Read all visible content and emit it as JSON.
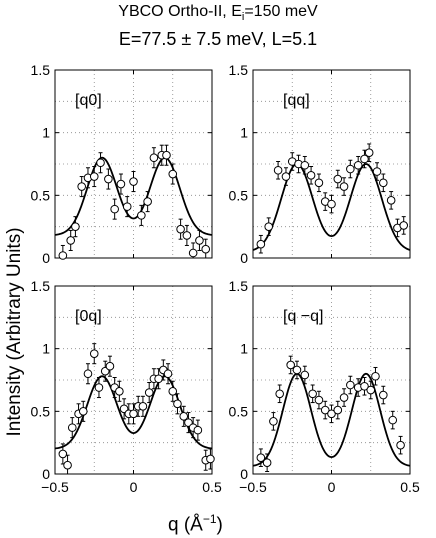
{
  "figure": {
    "title_line1_prefix": "YBCO Ortho-II, E",
    "title_line1_sub": "i",
    "title_line1_suffix": "=150 meV",
    "title_line2": "E=77.5 ± 7.5 meV, L=5.1",
    "ylabel": "Intensity (Arbitrary Units)",
    "xlabel_prefix": "q (Å",
    "xlabel_sup": "−1",
    "xlabel_suffix": ")"
  },
  "chart_data": [
    {
      "type": "scatter",
      "panel": "top-left",
      "annotation": "[q0]",
      "xlim": [
        -0.5,
        0.5
      ],
      "ylim": [
        0,
        1.5
      ],
      "xticks": [
        "−0.5",
        "0",
        "0.5"
      ],
      "yticks": [
        "0",
        "0.5",
        "1",
        "1.5"
      ],
      "grid": true,
      "series": [
        {
          "points": [
            [
              -0.45,
              0.02
            ],
            [
              -0.4,
              0.14
            ],
            [
              -0.37,
              0.25
            ],
            [
              -0.33,
              0.57
            ],
            [
              -0.29,
              0.64
            ],
            [
              -0.25,
              0.65
            ],
            [
              -0.21,
              0.76
            ],
            [
              -0.16,
              0.63
            ],
            [
              -0.12,
              0.39
            ],
            [
              -0.08,
              0.59
            ],
            [
              -0.04,
              0.41
            ],
            [
              0.0,
              0.61
            ],
            [
              0.05,
              0.34
            ],
            [
              0.09,
              0.45
            ],
            [
              0.13,
              0.8
            ],
            [
              0.18,
              0.82
            ],
            [
              0.21,
              0.82
            ],
            [
              0.25,
              0.67
            ],
            [
              0.3,
              0.23
            ],
            [
              0.34,
              0.18
            ],
            [
              0.38,
              0.04
            ],
            [
              0.42,
              0.14
            ],
            [
              0.46,
              0.07
            ]
          ],
          "errors": [
            0.08,
            0.08,
            0.08,
            0.08,
            0.08,
            0.08,
            0.08,
            0.08,
            0.08,
            0.08,
            0.08,
            0.08,
            0.08,
            0.08,
            0.08,
            0.08,
            0.08,
            0.08,
            0.08,
            0.08,
            0.08,
            0.08,
            0.08
          ]
        }
      ],
      "fit": {
        "center": 0.2,
        "sigma": 0.095,
        "amplitude": 0.62,
        "background": 0.18
      }
    },
    {
      "type": "scatter",
      "panel": "top-right",
      "annotation": "[qq]",
      "xlim": [
        -0.5,
        0.5
      ],
      "ylim": [
        0,
        1.5
      ],
      "xticks": [
        "−0.5",
        "0",
        "0.5"
      ],
      "yticks": [
        "0",
        "0.5",
        "1",
        "1.5"
      ],
      "grid": true,
      "series": [
        {
          "points": [
            [
              -0.45,
              0.11
            ],
            [
              -0.4,
              0.25
            ],
            [
              -0.34,
              0.7
            ],
            [
              -0.29,
              0.65
            ],
            [
              -0.25,
              0.77
            ],
            [
              -0.21,
              0.75
            ],
            [
              -0.17,
              0.74
            ],
            [
              -0.13,
              0.66
            ],
            [
              -0.08,
              0.6
            ],
            [
              -0.04,
              0.45
            ],
            [
              0.0,
              0.43
            ],
            [
              0.04,
              0.63
            ],
            [
              0.08,
              0.57
            ],
            [
              0.12,
              0.71
            ],
            [
              0.17,
              0.74
            ],
            [
              0.21,
              0.79
            ],
            [
              0.24,
              0.84
            ],
            [
              0.29,
              0.69
            ],
            [
              0.33,
              0.6
            ],
            [
              0.38,
              0.46
            ],
            [
              0.42,
              0.24
            ],
            [
              0.46,
              0.26
            ]
          ],
          "errors": [
            0.07,
            0.07,
            0.07,
            0.07,
            0.07,
            0.07,
            0.07,
            0.07,
            0.07,
            0.07,
            0.07,
            0.07,
            0.07,
            0.07,
            0.07,
            0.07,
            0.07,
            0.07,
            0.07,
            0.07,
            0.07,
            0.07
          ]
        }
      ],
      "fit": {
        "center": 0.22,
        "sigma": 0.1,
        "amplitude": 0.7,
        "background": 0.05
      }
    },
    {
      "type": "scatter",
      "panel": "bottom-left",
      "annotation": "[0q]",
      "xlim": [
        -0.5,
        0.5
      ],
      "ylim": [
        0,
        1.5
      ],
      "xticks": [
        "−0.5",
        "0",
        "0.5"
      ],
      "yticks": [
        "0",
        "0.5",
        "1",
        "1.5"
      ],
      "grid": true,
      "series": [
        {
          "points": [
            [
              -0.45,
              0.16
            ],
            [
              -0.42,
              0.07
            ],
            [
              -0.39,
              0.37
            ],
            [
              -0.35,
              0.48
            ],
            [
              -0.32,
              0.5
            ],
            [
              -0.29,
              0.8
            ],
            [
              -0.25,
              0.96
            ],
            [
              -0.22,
              0.69
            ],
            [
              -0.18,
              0.82
            ],
            [
              -0.15,
              0.86
            ],
            [
              -0.12,
              0.69
            ],
            [
              -0.09,
              0.66
            ],
            [
              -0.06,
              0.52
            ],
            [
              -0.03,
              0.48
            ],
            [
              0.0,
              0.48
            ],
            [
              0.03,
              0.54
            ],
            [
              0.06,
              0.54
            ],
            [
              0.1,
              0.65
            ],
            [
              0.13,
              0.76
            ],
            [
              0.16,
              0.76
            ],
            [
              0.19,
              0.83
            ],
            [
              0.22,
              0.8
            ],
            [
              0.25,
              0.66
            ],
            [
              0.28,
              0.56
            ],
            [
              0.32,
              0.46
            ],
            [
              0.35,
              0.41
            ],
            [
              0.38,
              0.37
            ],
            [
              0.41,
              0.35
            ],
            [
              0.46,
              0.11
            ],
            [
              0.49,
              0.12
            ]
          ],
          "errors": [
            0.08,
            0.08,
            0.08,
            0.08,
            0.08,
            0.08,
            0.08,
            0.08,
            0.08,
            0.08,
            0.08,
            0.08,
            0.08,
            0.08,
            0.08,
            0.08,
            0.08,
            0.08,
            0.08,
            0.08,
            0.08,
            0.08,
            0.08,
            0.08,
            0.08,
            0.08,
            0.08,
            0.08,
            0.08,
            0.08
          ]
        }
      ],
      "fit": {
        "center": 0.2,
        "sigma": 0.095,
        "amplitude": 0.58,
        "background": 0.2
      }
    },
    {
      "type": "scatter",
      "panel": "bottom-right",
      "annotation": "[q −q]",
      "xlim": [
        -0.5,
        0.5
      ],
      "ylim": [
        0,
        1.5
      ],
      "xticks": [
        "−0.5",
        "0",
        "0.5"
      ],
      "yticks": [
        "0",
        "0.5",
        "1",
        "1.5"
      ],
      "grid": true,
      "series": [
        {
          "points": [
            [
              -0.45,
              0.13
            ],
            [
              -0.41,
              0.09
            ],
            [
              -0.37,
              0.42
            ],
            [
              -0.33,
              0.64
            ],
            [
              -0.26,
              0.87
            ],
            [
              -0.22,
              0.83
            ],
            [
              -0.17,
              0.79
            ],
            [
              -0.12,
              0.64
            ],
            [
              -0.08,
              0.59
            ],
            [
              -0.04,
              0.51
            ],
            [
              0.0,
              0.48
            ],
            [
              0.04,
              0.51
            ],
            [
              0.08,
              0.61
            ],
            [
              0.12,
              0.71
            ],
            [
              0.17,
              0.69
            ],
            [
              0.21,
              0.7
            ],
            [
              0.25,
              0.67
            ],
            [
              0.28,
              0.78
            ],
            [
              0.33,
              0.63
            ],
            [
              0.39,
              0.43
            ],
            [
              0.44,
              0.23
            ]
          ],
          "errors": [
            0.07,
            0.07,
            0.07,
            0.07,
            0.07,
            0.07,
            0.07,
            0.07,
            0.07,
            0.07,
            0.07,
            0.07,
            0.07,
            0.07,
            0.07,
            0.07,
            0.07,
            0.07,
            0.07,
            0.07,
            0.07
          ]
        }
      ],
      "fit": {
        "center": 0.22,
        "sigma": 0.09,
        "amplitude": 0.74,
        "background": 0.06
      }
    }
  ]
}
